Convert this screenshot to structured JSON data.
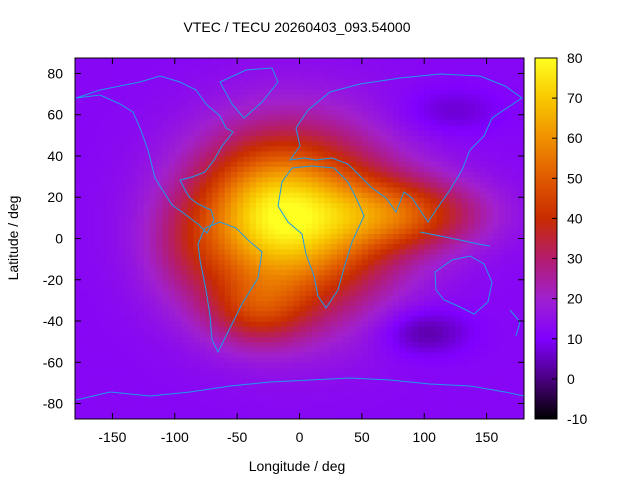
{
  "chart_data": {
    "type": "heatmap",
    "title": "VTEC / TECU 20260403_093.54000",
    "xlabel": "Longitude / deg",
    "ylabel": "Latitude / deg",
    "xlim": [
      -180,
      180
    ],
    "ylim": [
      -87.5,
      87.5
    ],
    "xticks": [
      -150,
      -100,
      -50,
      0,
      50,
      100,
      150
    ],
    "yticks": [
      -80,
      -60,
      -40,
      -20,
      0,
      20,
      40,
      60,
      80
    ],
    "colorbar": {
      "min": -10,
      "max": 80,
      "ticks": [
        -10,
        0,
        10,
        20,
        30,
        40,
        50,
        60,
        70,
        80
      ]
    },
    "grid": false,
    "field": {
      "background": 12,
      "blobs": [
        {
          "lon": -5,
          "lat": 8,
          "sx": 55,
          "sy": 30,
          "amp": 55
        },
        {
          "lon": -30,
          "lat": 15,
          "sx": 35,
          "sy": 20,
          "amp": 15
        },
        {
          "lon": -35,
          "lat": -35,
          "sx": 28,
          "sy": 12,
          "amp": 18
        },
        {
          "lon": 85,
          "lat": 12,
          "sx": 45,
          "sy": 12,
          "amp": 28
        },
        {
          "lon": -90,
          "lat": -5,
          "sx": 25,
          "sy": 18,
          "amp": 8
        },
        {
          "lon": 100,
          "lat": -45,
          "sx": 25,
          "sy": 8,
          "amp": -10
        },
        {
          "lon": 120,
          "lat": 62,
          "sx": 30,
          "sy": 8,
          "amp": -6
        }
      ]
    }
  }
}
